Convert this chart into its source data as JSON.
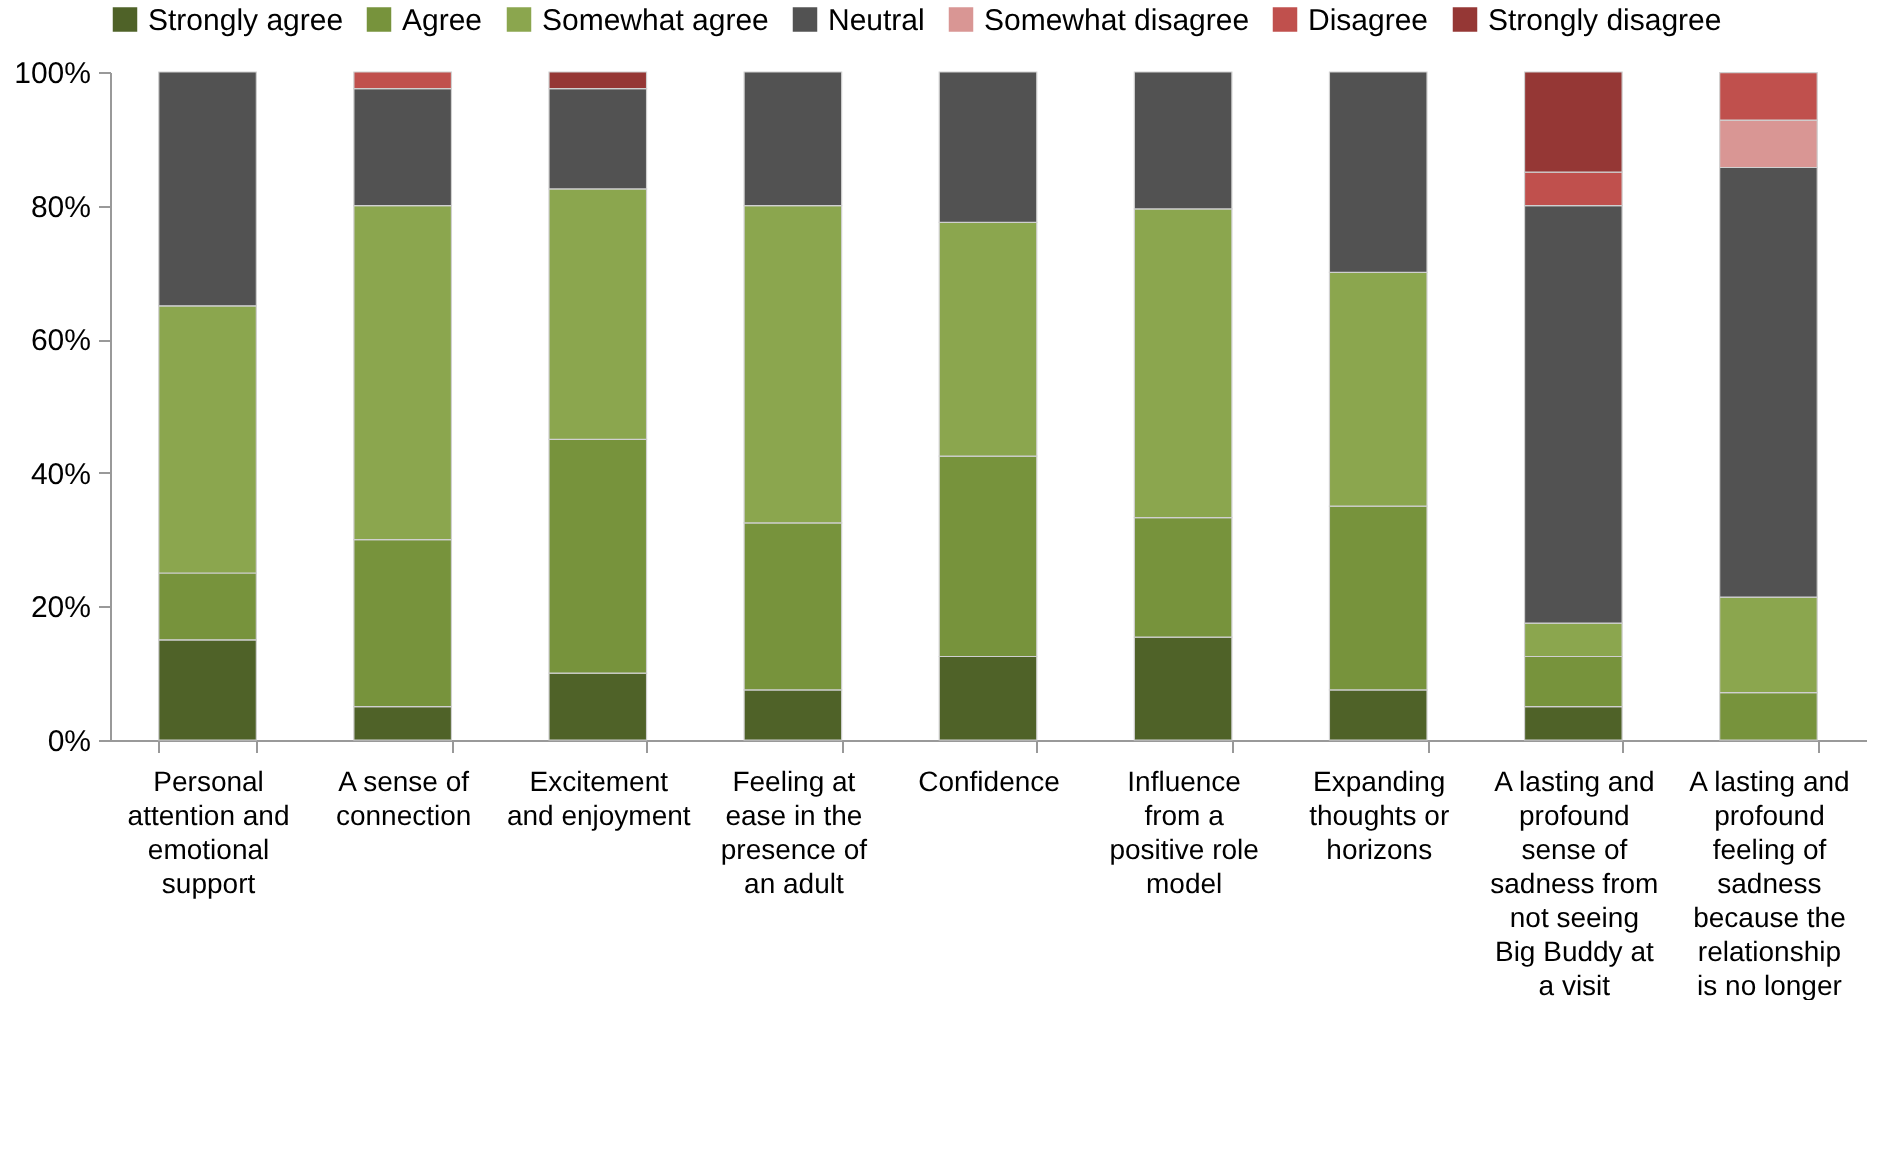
{
  "chart_data": {
    "type": "bar",
    "stacked": true,
    "legend": "top",
    "grid": false,
    "categories": [
      "Personal attention and emotional support",
      "A sense of connection",
      "Excitement and enjoyment",
      "Feeling at ease in the presence of an adult",
      "Confidence",
      "Influence from a positive role model",
      "Expanding thoughts or horizons",
      "A lasting and profound sense of sadness from not seeing Big Buddy at a visit",
      "A lasting and profound feeling of sadness because the relationship is no longer"
    ],
    "ylim": [
      0,
      100
    ],
    "yticks": [
      {
        "value": 0,
        "label": "0%"
      },
      {
        "value": 20,
        "label": "20%"
      },
      {
        "value": 40,
        "label": "40%"
      },
      {
        "value": 60,
        "label": "60%"
      },
      {
        "value": 80,
        "label": "80%"
      },
      {
        "value": 100,
        "label": "100%"
      }
    ],
    "series": [
      {
        "name": "Strongly agree",
        "color": "#4f6228",
        "values": [
          15,
          5,
          10,
          7.5,
          12.5,
          15.4,
          7.5,
          5,
          null
        ]
      },
      {
        "name": "Agree",
        "color": "#77933c",
        "values": [
          10,
          25,
          35,
          25,
          30,
          17.9,
          27.5,
          7.5,
          7.1
        ]
      },
      {
        "name": "Somewhat agree",
        "color": "#8ba64e",
        "values": [
          40,
          50,
          37.5,
          47.5,
          35,
          46.2,
          35,
          5,
          14.3
        ]
      },
      {
        "name": "Neutral",
        "color": "#525252",
        "values": [
          35,
          17.5,
          15,
          20,
          22.5,
          20.5,
          30,
          62.5,
          64.3
        ]
      },
      {
        "name": "Somewhat disagree",
        "color": "#d99694",
        "values": [
          null,
          null,
          null,
          null,
          null,
          null,
          null,
          null,
          7.1
        ]
      },
      {
        "name": "Disagree",
        "color": "#c0504d",
        "values": [
          null,
          2.5,
          null,
          null,
          null,
          null,
          null,
          5,
          7.1
        ]
      },
      {
        "name": "Strongly disagree",
        "color": "#953735",
        "values": [
          null,
          null,
          2.5,
          null,
          null,
          null,
          null,
          15,
          null
        ]
      }
    ]
  }
}
